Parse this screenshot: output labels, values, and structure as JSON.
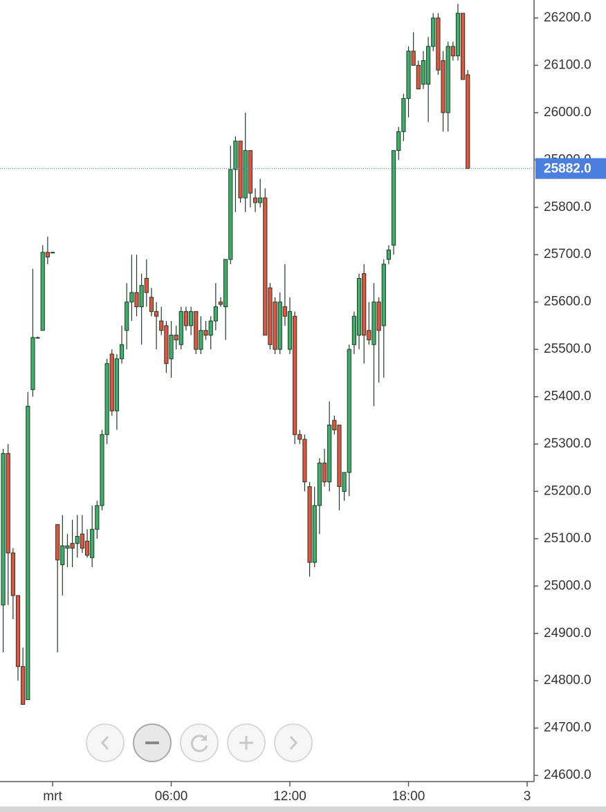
{
  "chart_data": {
    "type": "candlestick",
    "x": [
      -2.5,
      -2.25,
      -2,
      -1.75,
      -1.5,
      -1.25,
      -1,
      -0.75,
      -0.5,
      -0.25,
      0,
      0.25,
      0.5,
      0.75,
      1,
      1.25,
      1.5,
      1.75,
      2,
      2.25,
      2.5,
      2.75,
      3,
      3.25,
      3.5,
      3.75,
      4,
      4.25,
      4.5,
      4.75,
      5,
      5.25,
      5.5,
      5.75,
      6,
      6.25,
      6.5,
      6.75,
      7,
      7.25,
      7.5,
      7.75,
      8,
      8.25,
      8.5,
      8.75,
      9,
      9.25,
      9.5,
      9.75,
      10,
      10.25,
      10.5,
      10.75,
      11,
      11.25,
      11.5,
      11.75,
      12,
      12.25,
      12.5,
      12.75,
      13,
      13.25,
      13.5,
      13.75,
      14,
      14.25,
      14.5,
      14.75,
      15,
      15.25,
      15.5,
      15.75,
      16,
      16.25,
      16.5,
      16.75,
      17,
      17.25,
      17.5,
      17.75,
      18,
      18.25,
      18.5,
      18.75,
      19,
      19.25,
      19.5,
      19.75,
      20,
      20.25,
      20.5,
      20.75,
      21
    ],
    "open": [
      24960,
      25280,
      25070,
      24980,
      24830,
      24760,
      25415,
      25525,
      25540,
      25705,
      25705,
      25130,
      25045,
      25080,
      25090,
      25090,
      25110,
      25095,
      25060,
      25120,
      25170,
      25320,
      25490,
      25370,
      25480,
      25540,
      25600,
      25620,
      25590,
      25650,
      25610,
      25580,
      25560,
      25550,
      25480,
      25530,
      25510,
      25580,
      25550,
      25580,
      25500,
      25540,
      25530,
      25560,
      25600,
      25590,
      25690,
      25880,
      25940,
      25820,
      25920,
      25820,
      25810,
      25820,
      25630,
      25600,
      25500,
      25590,
      25500,
      25570,
      25320,
      25310,
      25210,
      25050,
      25170,
      25260,
      25220,
      25350,
      25340,
      25200,
      25240,
      25510,
      25530,
      25660,
      25540,
      25510,
      25600,
      25550,
      25690,
      25720,
      25920,
      25960,
      26030,
      26130,
      26100,
      26060,
      26060,
      26140,
      26200,
      26110,
      26000,
      26140,
      26120,
      26210,
      26080
    ],
    "high": [
      25290,
      25300,
      25080,
      24980,
      24870,
      25410,
      25670,
      25527,
      25720,
      25738,
      25706,
      25130,
      25150,
      25110,
      25140,
      25150,
      25150,
      25120,
      25170,
      25180,
      25330,
      25480,
      25500,
      25490,
      25550,
      25640,
      25700,
      25700,
      25660,
      25690,
      25630,
      25600,
      25590,
      25560,
      25560,
      25550,
      25590,
      25590,
      25590,
      25580,
      25570,
      25560,
      25570,
      25640,
      25610,
      25690,
      25930,
      25950,
      25940,
      26000,
      25920,
      25840,
      25860,
      25840,
      25640,
      25610,
      25620,
      25680,
      25610,
      25580,
      25330,
      25320,
      25220,
      25210,
      25270,
      25290,
      25390,
      25360,
      25340,
      25240,
      25510,
      25580,
      25660,
      25680,
      25600,
      25640,
      25610,
      25690,
      25720,
      25920,
      25970,
      26040,
      26140,
      26170,
      26110,
      26130,
      26160,
      26210,
      26210,
      26130,
      26150,
      26150,
      26230,
      26210,
      26090
    ],
    "low": [
      24860,
      24960,
      24930,
      24800,
      24750,
      24760,
      25400,
      25523,
      25540,
      25680,
      25704,
      24860,
      24980,
      25040,
      25040,
      25060,
      25070,
      25060,
      25040,
      25100,
      25160,
      25300,
      25360,
      25330,
      25470,
      25500,
      25560,
      25570,
      25510,
      25590,
      25570,
      25500,
      25530,
      25450,
      25440,
      25500,
      25500,
      25540,
      25530,
      25490,
      25490,
      25520,
      25500,
      25540,
      25590,
      25520,
      25680,
      25790,
      25810,
      25790,
      25800,
      25790,
      25800,
      25530,
      25500,
      25490,
      25490,
      25550,
      25490,
      25300,
      25300,
      25200,
      25020,
      25040,
      25110,
      25210,
      25200,
      25320,
      25160,
      25180,
      25190,
      25490,
      25500,
      25470,
      25510,
      25380,
      25430,
      25440,
      25680,
      25700,
      25900,
      25940,
      25990,
      26100,
      26050,
      26050,
      25980,
      26130,
      26080,
      25960,
      25960,
      26110,
      26110,
      26070,
      25882
    ],
    "close": [
      25280,
      25070,
      24980,
      24830,
      24750,
      25380,
      25525,
      25525,
      25705,
      25695,
      25705,
      25055,
      25085,
      25085,
      25080,
      25105,
      25080,
      25065,
      25120,
      25170,
      25320,
      25470,
      25370,
      25480,
      25510,
      25600,
      25620,
      25590,
      25635,
      25620,
      25580,
      25570,
      25540,
      25470,
      25530,
      25520,
      25580,
      25550,
      25580,
      25500,
      25540,
      25530,
      25560,
      25590,
      25595,
      25690,
      25880,
      25940,
      25820,
      25920,
      25830,
      25810,
      25820,
      25530,
      25510,
      25500,
      25600,
      25570,
      25580,
      25320,
      25310,
      25220,
      25050,
      25170,
      25260,
      25220,
      25340,
      25330,
      25210,
      25240,
      25500,
      25570,
      25650,
      25530,
      25520,
      25600,
      25540,
      25680,
      25710,
      25920,
      25960,
      26030,
      26130,
      26100,
      26050,
      26110,
      26140,
      26200,
      26090,
      26000,
      26140,
      26120,
      26210,
      26070,
      25882
    ],
    "up_color": "#3fae6b",
    "down_color": "#e4533f",
    "outline_color": "#1e3a26",
    "last_price": {
      "value": 25882,
      "label": "25882.0"
    },
    "last_price_color": "#4a7fe0",
    "xlim": [
      -2.66,
      24.35
    ],
    "xticks": [
      {
        "value": 0,
        "label": "mrt"
      },
      {
        "value": 6,
        "label": "06:00"
      },
      {
        "value": 12,
        "label": "12:00"
      },
      {
        "value": 18,
        "label": "18:00"
      },
      {
        "value": 24,
        "label": "3"
      }
    ],
    "ylim": [
      24587,
      26238
    ],
    "yticks": [
      {
        "value": 26200,
        "label": "26200.0"
      },
      {
        "value": 26100,
        "label": "26100.0"
      },
      {
        "value": 26000,
        "label": "26000.0"
      },
      {
        "value": 25900,
        "label": "25900.0"
      },
      {
        "value": 25800,
        "label": "25800.0"
      },
      {
        "value": 25700,
        "label": "25700.0"
      },
      {
        "value": 25600,
        "label": "25600.0"
      },
      {
        "value": 25500,
        "label": "25500.0"
      },
      {
        "value": 25400,
        "label": "25400.0"
      },
      {
        "value": 25300,
        "label": "25300.0"
      },
      {
        "value": 25200,
        "label": "25200.0"
      },
      {
        "value": 25100,
        "label": "25100.0"
      },
      {
        "value": 25000,
        "label": "25000.0"
      },
      {
        "value": 24900,
        "label": "24900.0"
      },
      {
        "value": 24800,
        "label": "24800.0"
      },
      {
        "value": 24700,
        "label": "24700.0"
      },
      {
        "value": 24600,
        "label": "24600.0"
      }
    ],
    "grid": false
  }
}
